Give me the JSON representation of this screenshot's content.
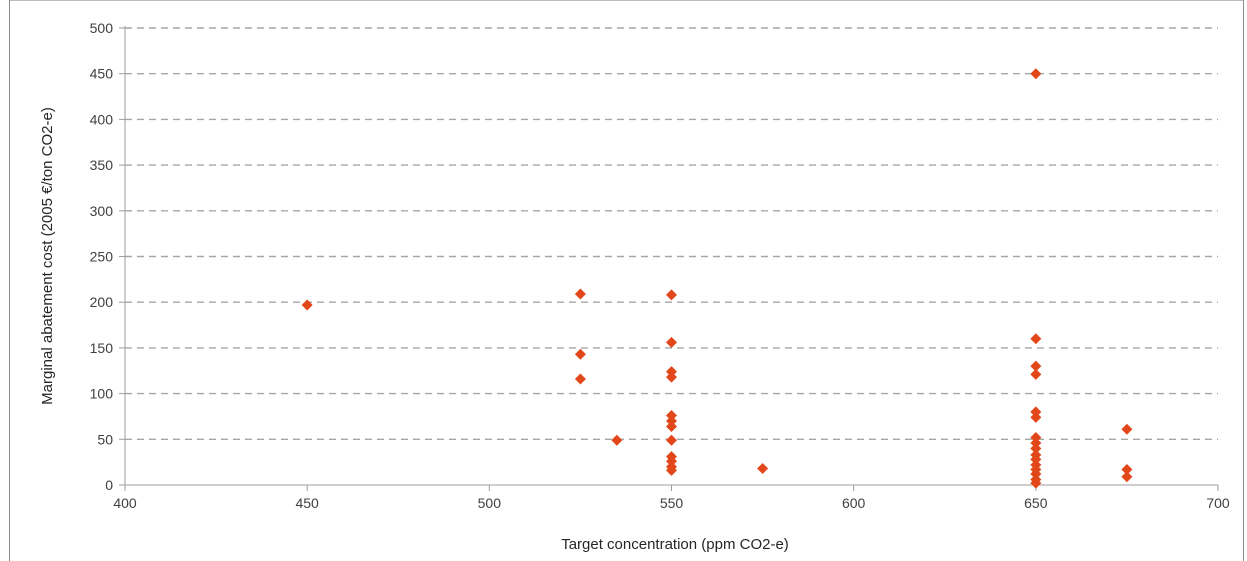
{
  "chart_data": {
    "type": "scatter",
    "xlabel": "Target concentration (ppm CO2-e)",
    "ylabel": "Marginal abatement cost (2005 €/ton CO2-e)",
    "xlim": [
      400,
      700
    ],
    "ylim": [
      0,
      500
    ],
    "xticks": [
      "400",
      "450",
      "500",
      "550",
      "600",
      "650",
      "700"
    ],
    "yticks": [
      "0",
      "50",
      "100",
      "150",
      "200",
      "250",
      "300",
      "350",
      "400",
      "450",
      "500"
    ],
    "grid": "horizontal dashed",
    "marker": "diamond",
    "colors": {
      "marker": "#e2471a",
      "grid": "#a6a6a6",
      "axis": "#9e9e9e"
    },
    "points": [
      [
        450,
        197
      ],
      [
        525,
        209
      ],
      [
        525,
        143
      ],
      [
        525,
        116
      ],
      [
        535,
        49
      ],
      [
        550,
        208
      ],
      [
        550,
        156
      ],
      [
        550,
        124
      ],
      [
        550,
        118
      ],
      [
        550,
        76
      ],
      [
        550,
        70
      ],
      [
        550,
        64
      ],
      [
        550,
        49
      ],
      [
        550,
        31
      ],
      [
        550,
        26
      ],
      [
        550,
        20
      ],
      [
        550,
        16
      ],
      [
        575,
        18
      ],
      [
        650,
        450
      ],
      [
        650,
        160
      ],
      [
        650,
        130
      ],
      [
        650,
        121
      ],
      [
        650,
        80
      ],
      [
        650,
        74
      ],
      [
        650,
        52
      ],
      [
        650,
        46
      ],
      [
        650,
        40
      ],
      [
        650,
        33
      ],
      [
        650,
        28
      ],
      [
        650,
        22
      ],
      [
        650,
        17
      ],
      [
        650,
        12
      ],
      [
        650,
        6
      ],
      [
        650,
        2
      ],
      [
        675,
        61
      ],
      [
        675,
        17
      ],
      [
        675,
        9
      ]
    ]
  }
}
